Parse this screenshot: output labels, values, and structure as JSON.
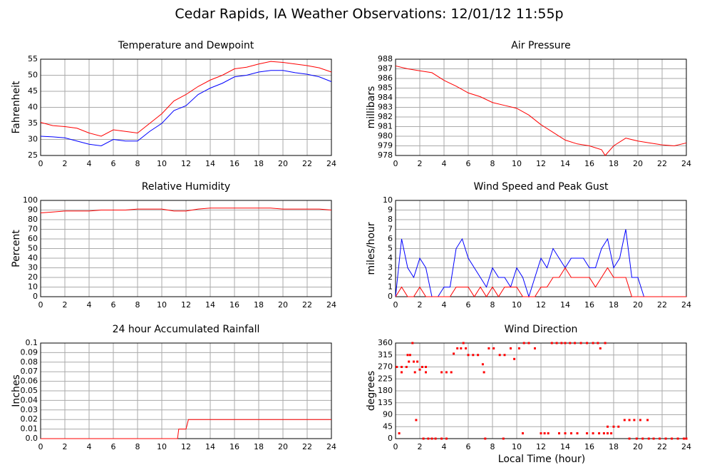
{
  "title": "Cedar Rapids, IA Weather Observations: 12/01/12 11:55p",
  "x_label": "Local Time (hour)",
  "chart_data": [
    {
      "type": "line",
      "title": "Temperature and Dewpoint",
      "y_label": "Fahrenheit",
      "x": [
        0,
        1,
        2,
        3,
        4,
        5,
        6,
        7,
        8,
        9,
        10,
        11,
        12,
        13,
        14,
        15,
        16,
        17,
        18,
        19,
        20,
        21,
        22,
        23,
        24
      ],
      "series": [
        {
          "color": "#ff0000",
          "values": [
            35.3,
            34.3,
            34,
            33.5,
            32,
            31,
            33,
            32.5,
            32,
            35,
            38,
            42,
            44,
            46.5,
            48.5,
            50,
            52,
            52.5,
            53.5,
            54.3,
            54,
            53.5,
            53,
            52.3,
            51
          ]
        },
        {
          "color": "#0000ff",
          "values": [
            31,
            30.8,
            30.5,
            29.5,
            28.5,
            28,
            30,
            29.5,
            29.5,
            32.5,
            35,
            39,
            40.5,
            44,
            46,
            47.5,
            49.5,
            50,
            51,
            51.5,
            51.5,
            50.8,
            50.3,
            49.5,
            48
          ]
        }
      ],
      "xlim": [
        0,
        24
      ],
      "xticks": [
        0,
        2,
        4,
        6,
        8,
        10,
        12,
        14,
        16,
        18,
        20,
        22,
        24
      ],
      "ylim": [
        25,
        55
      ],
      "yticks": [
        25,
        30,
        35,
        40,
        45,
        50,
        55
      ],
      "grid": true
    },
    {
      "type": "line",
      "title": "Air Pressure",
      "y_label": "millibars",
      "x": [
        0,
        1,
        2,
        3,
        4,
        5,
        6,
        7,
        8,
        9,
        10,
        11,
        12,
        13,
        14,
        15,
        16,
        17,
        17.3,
        18,
        19,
        20,
        21,
        22,
        23,
        24
      ],
      "series": [
        {
          "color": "#ff0000",
          "values": [
            987.3,
            987,
            986.8,
            986.6,
            985.8,
            985.2,
            984.5,
            984.1,
            983.5,
            983.2,
            982.9,
            982.2,
            981.2,
            980.4,
            979.6,
            979.2,
            979,
            978.6,
            978,
            979,
            979.8,
            979.5,
            979.3,
            979.1,
            979,
            979.3
          ]
        }
      ],
      "xlim": [
        0,
        24
      ],
      "xticks": [
        0,
        2,
        4,
        6,
        8,
        10,
        12,
        14,
        16,
        18,
        20,
        22,
        24
      ],
      "ylim": [
        978,
        988
      ],
      "yticks": [
        978,
        979,
        980,
        981,
        982,
        983,
        984,
        985,
        986,
        987,
        988
      ],
      "grid": true
    },
    {
      "type": "line",
      "title": "Relative Humidity",
      "y_label": "Percent",
      "x": [
        0,
        1,
        2,
        3,
        4,
        5,
        6,
        7,
        8,
        9,
        10,
        11,
        12,
        13,
        14,
        15,
        16,
        17,
        18,
        19,
        20,
        21,
        22,
        23,
        24
      ],
      "series": [
        {
          "color": "#ff0000",
          "values": [
            87,
            88,
            89,
            89,
            89,
            90,
            90,
            90,
            91,
            91,
            91,
            89,
            89,
            91,
            92,
            92,
            92,
            92,
            92,
            92,
            91,
            91,
            91,
            91,
            90
          ]
        }
      ],
      "xlim": [
        0,
        24
      ],
      "xticks": [
        0,
        2,
        4,
        6,
        8,
        10,
        12,
        14,
        16,
        18,
        20,
        22,
        24
      ],
      "ylim": [
        0,
        100
      ],
      "yticks": [
        0,
        10,
        20,
        30,
        40,
        50,
        60,
        70,
        80,
        90,
        100
      ],
      "grid": true
    },
    {
      "type": "line",
      "title": "Wind Speed and Peak Gust",
      "y_label": "miles/hour",
      "x": [
        0,
        0.5,
        1,
        1.5,
        2,
        2.5,
        3,
        3.5,
        4,
        4.5,
        5,
        5.5,
        6,
        6.5,
        7,
        7.5,
        8,
        8.5,
        9,
        9.5,
        10,
        10.5,
        11,
        11.5,
        12,
        12.5,
        13,
        13.5,
        14,
        14.5,
        15,
        15.5,
        16,
        16.5,
        17,
        17.5,
        18,
        18.5,
        19,
        19.5,
        20,
        20.5,
        21,
        22,
        23,
        24
      ],
      "series": [
        {
          "color": "#0000ff",
          "values": [
            0,
            6,
            3,
            2,
            4,
            3,
            0,
            0,
            1,
            1,
            5,
            6,
            4,
            3,
            2,
            1,
            3,
            2,
            2,
            1,
            3,
            2,
            0,
            2,
            4,
            3,
            5,
            4,
            3,
            4,
            4,
            4,
            3,
            3,
            5,
            6,
            3,
            4,
            7,
            2,
            2,
            0,
            0,
            0,
            0,
            0
          ]
        },
        {
          "color": "#ff0000",
          "values": [
            0,
            1,
            0,
            0,
            1,
            0,
            0,
            0,
            0,
            0,
            1,
            1,
            1,
            0,
            1,
            0,
            1,
            0,
            1,
            1,
            1,
            0,
            0,
            0,
            1,
            1,
            2,
            2,
            3,
            2,
            2,
            2,
            2,
            1,
            2,
            3,
            2,
            2,
            2,
            0,
            0,
            0,
            0,
            0,
            0,
            0
          ]
        }
      ],
      "xlim": [
        0,
        24
      ],
      "xticks": [
        0,
        2,
        4,
        6,
        8,
        10,
        12,
        14,
        16,
        18,
        20,
        22,
        24
      ],
      "ylim": [
        0,
        10
      ],
      "yticks": [
        0,
        1,
        2,
        3,
        4,
        5,
        6,
        7,
        8,
        9,
        10
      ],
      "grid": true
    },
    {
      "type": "line",
      "title": "24 hour Accumulated Rainfall",
      "y_label": "Inches",
      "x": [
        0,
        11.3,
        11.4,
        12,
        12.2,
        24
      ],
      "series": [
        {
          "color": "#ff0000",
          "values": [
            0,
            0,
            0.01,
            0.01,
            0.02,
            0.02
          ]
        }
      ],
      "xlim": [
        0,
        24
      ],
      "xticks": [
        0,
        2,
        4,
        6,
        8,
        10,
        12,
        14,
        16,
        18,
        20,
        22,
        24
      ],
      "ylim": [
        0,
        0.1
      ],
      "yticks": [
        {
          "value": 0,
          "label": "0.0"
        },
        0.01,
        0.02,
        0.03,
        0.04,
        0.05,
        0.06,
        0.07,
        0.08,
        0.09,
        0.1
      ],
      "grid": true
    },
    {
      "type": "scatter",
      "title": "Wind Direction",
      "y_label": "degrees",
      "x": [
        0.1,
        0.5,
        0.9,
        0.3,
        0.5,
        1.0,
        1.2,
        1.1,
        1.4,
        1.5,
        1.7,
        1.8,
        1.6,
        2.0,
        2.2,
        2.5,
        2.3,
        2.7,
        3.0,
        3.3,
        3.8,
        2.5,
        3.8,
        4.2,
        4.6,
        4.2,
        4.8,
        5.1,
        5.4,
        5.8,
        5.6,
        6.0,
        6.4,
        6.8,
        7.2,
        7.3,
        7.4,
        7.7,
        8.1,
        8.6,
        9.0,
        8.9,
        9.5,
        9.8,
        10.2,
        10.6,
        11.0,
        10.5,
        11.5,
        12.3,
        12.0,
        12.6,
        12.9,
        13.3,
        13.7,
        14.0,
        14.4,
        14.8,
        13.5,
        14.0,
        14.5,
        15.0,
        15.3,
        15.8,
        16.3,
        16.7,
        16.9,
        17.3,
        15.8,
        16.3,
        16.8,
        17.2,
        17.5,
        17.8,
        17.5,
        18.0,
        18.4,
        18.9,
        19.3,
        19.7,
        20.2,
        20.8,
        19.3,
        19.9,
        20.4,
        20.9,
        21.3,
        21.8,
        22.3,
        22.8,
        23.3,
        23.8,
        24
      ],
      "series": [
        {
          "color": "#ff0000",
          "values": [
            270,
            270,
            270,
            20,
            250,
            315,
            315,
            290,
            360,
            290,
            70,
            290,
            250,
            260,
            270,
            270,
            0,
            0,
            0,
            0,
            0,
            250,
            250,
            250,
            250,
            0,
            320,
            340,
            340,
            340,
            360,
            315,
            315,
            315,
            280,
            250,
            0,
            340,
            340,
            315,
            315,
            0,
            340,
            300,
            340,
            360,
            360,
            20,
            340,
            20,
            20,
            20,
            360,
            360,
            360,
            360,
            360,
            360,
            20,
            20,
            20,
            20,
            360,
            360,
            360,
            360,
            340,
            360,
            20,
            20,
            20,
            20,
            20,
            20,
            45,
            45,
            45,
            70,
            70,
            70,
            70,
            70,
            0,
            0,
            0,
            0,
            0,
            0,
            0,
            0,
            0,
            0,
            0
          ]
        }
      ],
      "xlim": [
        0,
        24
      ],
      "xticks": [
        0,
        2,
        4,
        6,
        8,
        10,
        12,
        14,
        16,
        18,
        20,
        22,
        24
      ],
      "ylim": [
        0,
        360
      ],
      "yticks": [
        0,
        45,
        90,
        135,
        180,
        225,
        270,
        315,
        360
      ],
      "grid": true
    }
  ]
}
